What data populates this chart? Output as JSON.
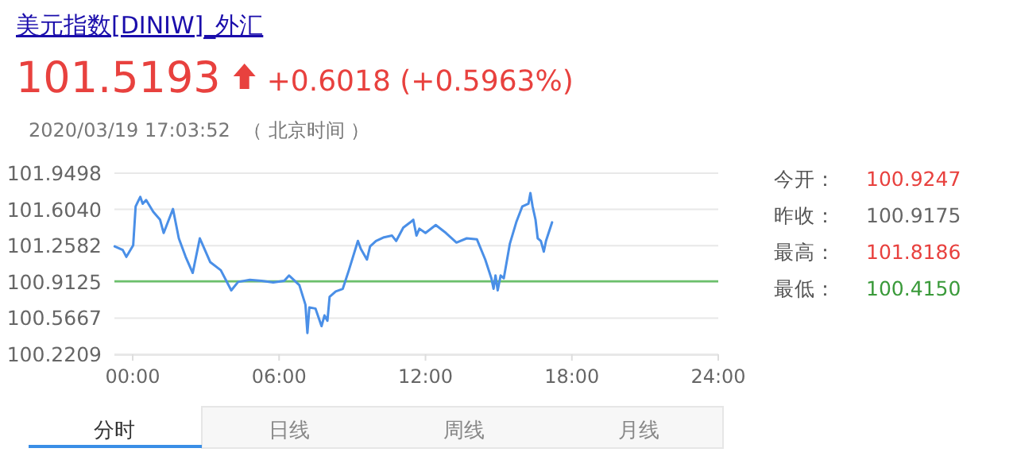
{
  "chart_data": {
    "type": "line",
    "title": "美元指数[DINIW]_外汇",
    "subtitle": "101.5193",
    "annotations": [
      "+0.6018 (+0.5963%)",
      "2020/03/19 17:03:52",
      "（ 北京时间 ）",
      "今开：",
      "100.9247",
      "昨收：",
      "100.9175",
      "最高：",
      "101.8186",
      "最低：",
      "100.4150",
      "分时",
      "日线",
      "周线",
      "月线"
    ],
    "x": [
      -0.74,
      -0.41,
      -0.26,
      0.02,
      0.12,
      0.31,
      0.41,
      0.55,
      0.84,
      1.12,
      1.27,
      1.65,
      1.89,
      2.17,
      2.46,
      2.75,
      3.18,
      3.61,
      4.04,
      4.32,
      4.8,
      5.28,
      5.76,
      6.21,
      6.41,
      6.83,
      7.08,
      7.16,
      7.24,
      7.49,
      7.74,
      7.86,
      7.98,
      8.07,
      8.32,
      8.61,
      8.86,
      9.23,
      9.35,
      9.6,
      9.73,
      9.97,
      10.3,
      10.63,
      10.8,
      11.09,
      11.38,
      11.5,
      11.63,
      11.75,
      12.0,
      12.42,
      12.84,
      13.27,
      13.69,
      14.11,
      14.45,
      14.7,
      14.79,
      14.87,
      14.96,
      15.08,
      15.21,
      15.46,
      15.72,
      15.97,
      16.22,
      16.3,
      16.39,
      16.51,
      16.6,
      16.73,
      16.85,
      16.94,
      17.19
    ],
    "values": [
      101.252,
      101.217,
      101.151,
      101.262,
      101.633,
      101.724,
      101.658,
      101.694,
      101.582,
      101.506,
      101.379,
      101.608,
      101.328,
      101.151,
      100.998,
      101.328,
      101.1,
      101.024,
      100.831,
      100.912,
      100.932,
      100.922,
      100.907,
      100.922,
      100.973,
      100.882,
      100.694,
      100.424,
      100.668,
      100.658,
      100.49,
      100.592,
      100.541,
      100.77,
      100.821,
      100.846,
      101.024,
      101.303,
      101.227,
      101.125,
      101.252,
      101.303,
      101.338,
      101.354,
      101.303,
      101.43,
      101.481,
      101.506,
      101.354,
      101.42,
      101.379,
      101.455,
      101.379,
      101.288,
      101.328,
      101.318,
      101.125,
      100.947,
      100.846,
      100.973,
      100.831,
      100.973,
      100.947,
      101.278,
      101.481,
      101.633,
      101.658,
      101.76,
      101.633,
      101.506,
      101.328,
      101.303,
      101.201,
      101.303,
      101.481
    ],
    "color": "#4a8fe7",
    "xlim": [
      -0.75,
      24
    ],
    "xticks": [
      {
        "value": 0,
        "label": "00:00"
      },
      {
        "value": 6,
        "label": "06:00"
      },
      {
        "value": 12,
        "label": "12:00"
      },
      {
        "value": 18,
        "label": "18:00"
      },
      {
        "value": 24,
        "label": "24:00"
      }
    ],
    "ylim": [
      100.2209,
      101.9498
    ],
    "yticks": [
      100.2209,
      100.5667,
      100.9125,
      101.2582,
      {
        "value": 101.604,
        "label": "101.6040"
      },
      101.9498
    ],
    "grid": "y",
    "ref_lines": [
      {
        "axis": "y",
        "value": 100.9175,
        "color": "#6cc06c"
      }
    ]
  }
}
